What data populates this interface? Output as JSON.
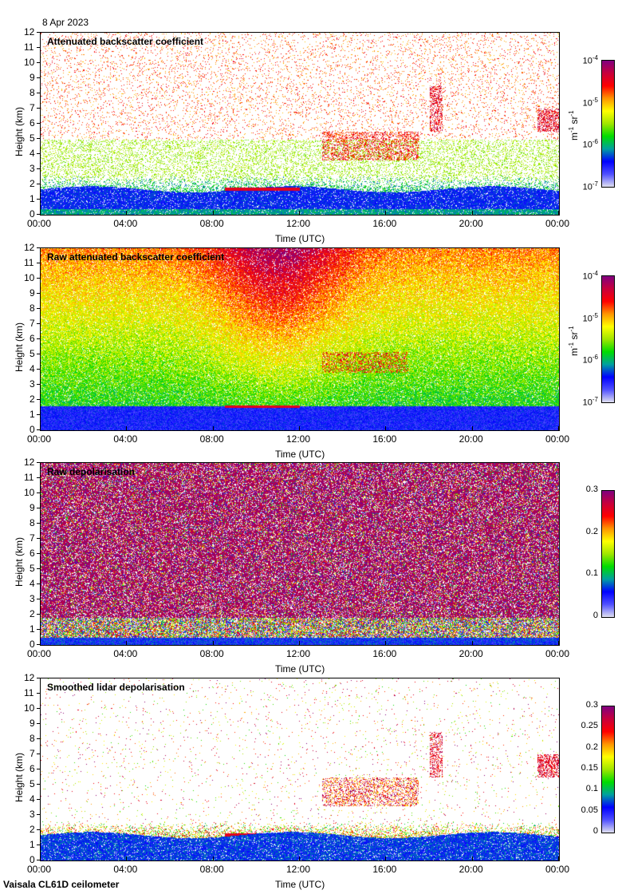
{
  "date": "8 Apr 2023",
  "footer": "Vaisala CL61D ceilometer",
  "chart_data": [
    {
      "type": "heatmap",
      "title": "Attenuated backscatter coefficient",
      "xlabel": "Time (UTC)",
      "ylabel": "Height (km)",
      "xticks": [
        "00:00",
        "04:00",
        "08:00",
        "12:00",
        "16:00",
        "20:00",
        "00:00"
      ],
      "yticks": [
        0,
        1,
        2,
        3,
        4,
        5,
        6,
        7,
        8,
        9,
        10,
        11,
        12
      ],
      "ylim": [
        0,
        12
      ],
      "colorbar": {
        "scale": "log",
        "ticks": [
          "10-7",
          "10-6",
          "10-5",
          "10-4"
        ],
        "range": [
          1e-07,
          0.0001
        ],
        "units": "m-1 sr-1"
      },
      "style": "clean-backscatter"
    },
    {
      "type": "heatmap",
      "title": "Raw attenuated backscatter coefficient",
      "xlabel": "Time (UTC)",
      "ylabel": "Height (km)",
      "xticks": [
        "00:00",
        "04:00",
        "08:00",
        "12:00",
        "16:00",
        "20:00",
        "00:00"
      ],
      "yticks": [
        0,
        1,
        2,
        3,
        4,
        5,
        6,
        7,
        8,
        9,
        10,
        11,
        12
      ],
      "ylim": [
        0,
        12
      ],
      "colorbar": {
        "scale": "log",
        "ticks": [
          "10-7",
          "10-6",
          "10-5",
          "10-4"
        ],
        "range": [
          1e-07,
          0.0001
        ],
        "units": "m-1 sr-1"
      },
      "style": "raw-backscatter"
    },
    {
      "type": "heatmap",
      "title": "Raw depolarisation",
      "xlabel": "Time (UTC)",
      "ylabel": "Height (km)",
      "xticks": [
        "00:00",
        "04:00",
        "08:00",
        "12:00",
        "16:00",
        "20:00",
        "00:00"
      ],
      "yticks": [
        0,
        1,
        2,
        3,
        4,
        5,
        6,
        7,
        8,
        9,
        10,
        11,
        12
      ],
      "ylim": [
        0,
        12
      ],
      "colorbar": {
        "scale": "linear",
        "ticks": [
          "0",
          "0.1",
          "0.2",
          "0.3"
        ],
        "range": [
          0,
          0.3
        ],
        "units": ""
      },
      "style": "raw-depol"
    },
    {
      "type": "heatmap",
      "title": "Smoothed lidar depolarisation",
      "xlabel": "Time (UTC)",
      "ylabel": "Height (km)",
      "xticks": [
        "00:00",
        "04:00",
        "08:00",
        "12:00",
        "16:00",
        "20:00",
        "00:00"
      ],
      "yticks": [
        0,
        1,
        2,
        3,
        4,
        5,
        6,
        7,
        8,
        9,
        10,
        11,
        12
      ],
      "ylim": [
        0,
        12
      ],
      "colorbar": {
        "scale": "linear",
        "ticks": [
          "0",
          "0.05",
          "0.1",
          "0.15",
          "0.2",
          "0.25",
          "0.3"
        ],
        "range": [
          0,
          0.3
        ],
        "units": ""
      },
      "style": "smooth-depol"
    }
  ]
}
